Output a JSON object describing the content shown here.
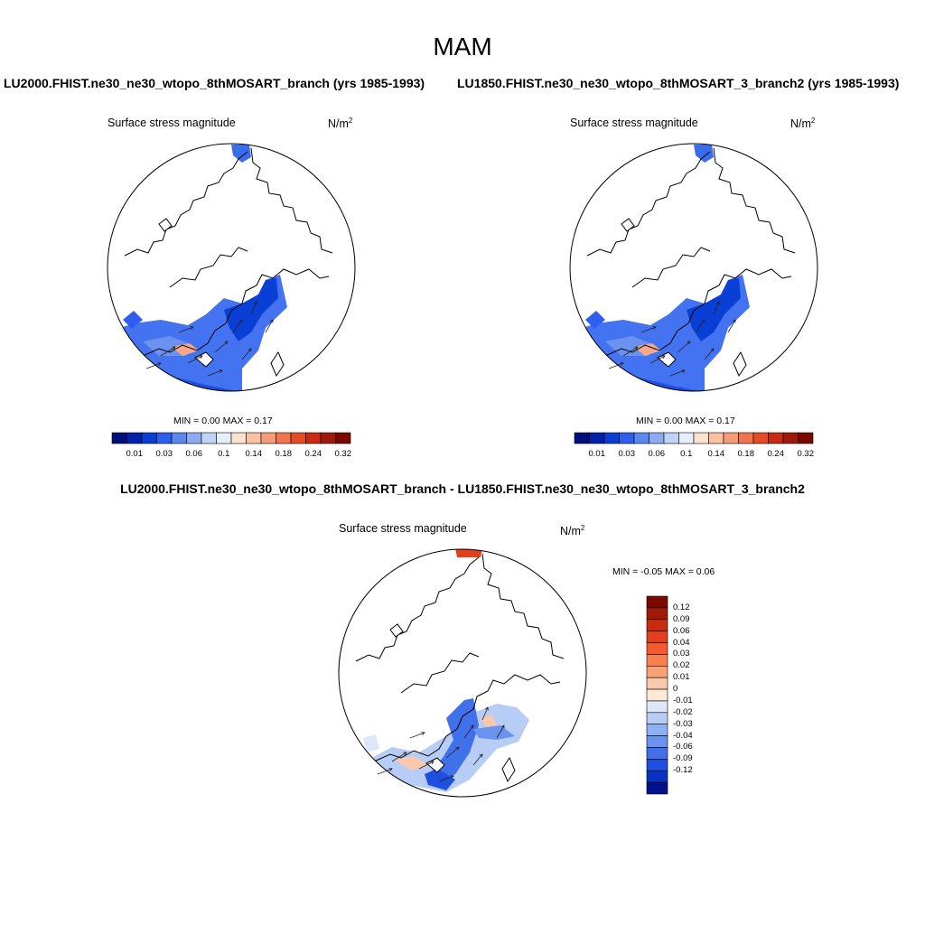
{
  "title": "MAM",
  "panels": [
    {
      "case_title": "LU2000.FHIST.ne30_ne30_wtopo_8thMOSART_branch (yrs 1985-1993)",
      "variable": "Surface stress magnitude",
      "units_base": "N/m",
      "units_exp": "2",
      "minmax": "MIN =   0.00 MAX =   0.17",
      "colorbar": {
        "orientation": "horizontal",
        "tick_labels": [
          "0.01",
          "0.03",
          "0.06",
          "0.1",
          "0.14",
          "0.18",
          "0.24",
          "0.32"
        ],
        "colors": [
          "#000e7c",
          "#0021a8",
          "#0a3fd6",
          "#2e5ef0",
          "#5c86f0",
          "#8eaaf3",
          "#bfd2f8",
          "#e6eefc",
          "#fbe2d0",
          "#f9c2a4",
          "#f59c76",
          "#f0744c",
          "#e44c26",
          "#c82c10",
          "#a01808",
          "#780800"
        ]
      }
    },
    {
      "case_title": "LU1850.FHIST.ne30_ne30_wtopo_8thMOSART_3_branch2 (yrs 1985-1993)",
      "variable": "Surface stress magnitude",
      "units_base": "N/m",
      "units_exp": "2",
      "minmax": "MIN =   0.00 MAX =   0.17",
      "colorbar": {
        "orientation": "horizontal",
        "tick_labels": [
          "0.01",
          "0.03",
          "0.06",
          "0.1",
          "0.14",
          "0.18",
          "0.24",
          "0.32"
        ],
        "colors": [
          "#000e7c",
          "#0021a8",
          "#0a3fd6",
          "#2e5ef0",
          "#5c86f0",
          "#8eaaf3",
          "#bfd2f8",
          "#e6eefc",
          "#fbe2d0",
          "#f9c2a4",
          "#f59c76",
          "#f0744c",
          "#e44c26",
          "#c82c10",
          "#a01808",
          "#780800"
        ]
      }
    },
    {
      "case_title": "LU2000.FHIST.ne30_ne30_wtopo_8thMOSART_branch - LU1850.FHIST.ne30_ne30_wtopo_8thMOSART_3_branch2",
      "variable": "Surface stress magnitude",
      "units_base": "N/m",
      "units_exp": "2",
      "minmax": "MIN =  -0.05 MAX =   0.06",
      "colorbar": {
        "orientation": "vertical",
        "tick_labels": [
          "0.12",
          "0.09",
          "0.06",
          "0.04",
          "0.03",
          "0.02",
          "0.01",
          "0",
          "-0.01",
          "-0.02",
          "-0.03",
          "-0.04",
          "-0.06",
          "-0.09",
          "-0.12"
        ],
        "colors": [
          "#7a0a00",
          "#a21a06",
          "#c82c10",
          "#e2401c",
          "#f25a30",
          "#f7804e",
          "#f9a27a",
          "#fac8ac",
          "#fbe8d8",
          "#dce8fa",
          "#b8cdf6",
          "#8fb0f2",
          "#6a92ee",
          "#4070ea",
          "#1d4fe0",
          "#0a32c0",
          "#00128c"
        ]
      }
    }
  ]
}
